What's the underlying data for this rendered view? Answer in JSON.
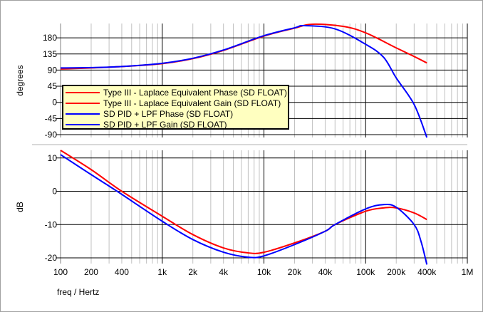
{
  "chart_data": [
    {
      "type": "line",
      "title": "",
      "ylabel": "degrees",
      "xscale": "log",
      "xlim": [
        100,
        1000000
      ],
      "ylim": [
        -98,
        220
      ],
      "yticks": [
        180,
        135,
        90,
        45,
        0,
        -45,
        -90
      ],
      "ytick_labels": [
        "180",
        "135",
        "90",
        "45",
        "0",
        "-45",
        "-90"
      ],
      "grid": true,
      "legend_position": "lower-left",
      "series": [
        {
          "name": "Type III - Laplace Equivalent Phase (SD FLOAT)",
          "color": "#ff0000",
          "x": [
            100,
            200,
            400,
            1000,
            2000,
            4000,
            10000,
            20000,
            30000,
            60000,
            100000,
            200000,
            300000,
            400000
          ],
          "y": [
            93,
            96,
            100,
            108,
            122,
            145,
            185,
            207,
            218,
            212,
            194,
            152,
            128,
            110
          ]
        },
        {
          "name": "SD PID + LPF Phase (SD FLOAT)",
          "color": "#0000ff",
          "x": [
            100,
            200,
            400,
            1000,
            2000,
            4000,
            10000,
            20000,
            25000,
            50000,
            100000,
            150000,
            200000,
            300000,
            400000
          ],
          "y": [
            96,
            97,
            100,
            109,
            123,
            146,
            186,
            208,
            214,
            205,
            162,
            126,
            68,
            -6,
            -98
          ]
        }
      ]
    },
    {
      "type": "line",
      "title": "",
      "xlabel": "freq / Hertz",
      "ylabel": "dB",
      "xscale": "log",
      "xlim": [
        100,
        1000000
      ],
      "ylim": [
        -21.7,
        12.3
      ],
      "yticks": [
        10,
        0,
        -10,
        -20
      ],
      "ytick_labels": [
        "10",
        "0",
        "-10",
        "-20"
      ],
      "xticks": [
        100,
        200,
        400,
        1000,
        2000,
        4000,
        10000,
        20000,
        40000,
        100000,
        200000,
        400000,
        1000000
      ],
      "xtick_labels": [
        "100",
        "200",
        "400",
        "1k",
        "2k",
        "4k",
        "10k",
        "20k",
        "40k",
        "100k",
        "200k",
        "400k",
        "1M"
      ],
      "grid": true,
      "series": [
        {
          "name": "Type III - Laplace Equivalent Gain (SD FLOAT)",
          "color": "#ff0000",
          "x": [
            100,
            200,
            400,
            1000,
            2000,
            4000,
            7000,
            10000,
            20000,
            40000,
            50000,
            100000,
            150000,
            200000,
            300000,
            400000
          ],
          "y": [
            12.3,
            6.5,
            0,
            -7.5,
            -13,
            -17,
            -18.5,
            -18.3,
            -15.5,
            -12,
            -10,
            -6,
            -5,
            -5,
            -6.5,
            -8.5
          ]
        },
        {
          "name": "SD PID + LPF Gain (SD FLOAT)",
          "color": "#0000ff",
          "x": [
            100,
            200,
            360,
            1000,
            2000,
            4000,
            7000,
            10000,
            20000,
            40000,
            50000,
            100000,
            150000,
            200000,
            300000,
            350000,
            400000
          ],
          "y": [
            11,
            5,
            0,
            -9,
            -14.5,
            -18.3,
            -19.8,
            -19.4,
            -16,
            -12,
            -10,
            -5.3,
            -4,
            -4.8,
            -10,
            -15,
            -22
          ]
        }
      ]
    }
  ],
  "legend": [
    {
      "label": "Type III - Laplace Equivalent Phase (SD FLOAT)",
      "color": "#ff0000"
    },
    {
      "label": "Type III - Laplace Equivalent Gain (SD FLOAT)",
      "color": "#ff0000"
    },
    {
      "label": "SD PID + LPF Phase (SD FLOAT)",
      "color": "#0000ff"
    },
    {
      "label": "SD PID + LPF Gain (SD FLOAT)",
      "color": "#0000ff"
    }
  ]
}
